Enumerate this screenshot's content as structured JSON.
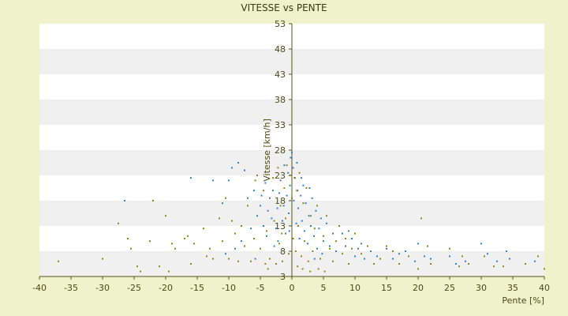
{
  "chart_data": {
    "type": "scatter",
    "title": "VITESSE vs PENTE",
    "xlabel": "Pente [%]",
    "ylabel": "Vitesse [km/h]",
    "xlim": [
      -40,
      40
    ],
    "ylim": [
      3,
      53
    ],
    "xticks": [
      "-40",
      "-35",
      "-30",
      "-25",
      "-20",
      "-15",
      "-10",
      "-5",
      "0",
      "5",
      "10",
      "15",
      "20",
      "25",
      "30",
      "35",
      "40"
    ],
    "yticks": [
      "3",
      "8",
      "13",
      "18",
      "23",
      "28",
      "33",
      "38",
      "43",
      "48",
      "53"
    ],
    "grid": "horizontal-bands",
    "colors": {
      "background": "#f0f2cc",
      "band_light": "#ffffff",
      "band_dark": "#f0f0f0",
      "axis": "#55551a",
      "series_blue": "#2f7fd6",
      "series_olive": "#8a8a10"
    },
    "series": [
      {
        "marker_color": "#2f7fd6",
        "points": [
          [
            -9.5,
            24.5
          ],
          [
            -8.5,
            25.5
          ],
          [
            -7.5,
            24.0
          ],
          [
            -10.0,
            22.0
          ],
          [
            -12.5,
            22.0
          ],
          [
            -16.0,
            22.5
          ],
          [
            -11.0,
            17.5
          ],
          [
            -26.5,
            18.0
          ],
          [
            -7.0,
            18.5
          ],
          [
            -6.0,
            20.0
          ],
          [
            -5.5,
            15.0
          ],
          [
            -5.0,
            17.0
          ],
          [
            -4.8,
            19.0
          ],
          [
            -4.5,
            13.0
          ],
          [
            -4.2,
            21.5
          ],
          [
            -4.0,
            11.0
          ],
          [
            -3.8,
            16.0
          ],
          [
            -3.5,
            18.5
          ],
          [
            -3.2,
            14.5
          ],
          [
            -3.0,
            20.0
          ],
          [
            -2.8,
            9.0
          ],
          [
            -2.5,
            12.5
          ],
          [
            -2.3,
            16.5
          ],
          [
            -2.0,
            19.5
          ],
          [
            -1.8,
            22.0
          ],
          [
            -1.5,
            14.0
          ],
          [
            -1.3,
            17.0
          ],
          [
            -1.0,
            11.5
          ],
          [
            -0.8,
            19.0
          ],
          [
            -0.6,
            23.5
          ],
          [
            -0.5,
            15.5
          ],
          [
            -0.3,
            21.0
          ],
          [
            -0.2,
            26.5
          ],
          [
            0.0,
            27.5
          ],
          [
            0.2,
            24.5
          ],
          [
            0.3,
            18.0
          ],
          [
            0.5,
            22.5
          ],
          [
            0.7,
            13.5
          ],
          [
            0.9,
            20.0
          ],
          [
            1.0,
            16.5
          ],
          [
            1.2,
            10.5
          ],
          [
            1.4,
            19.0
          ],
          [
            1.6,
            14.0
          ],
          [
            1.8,
            21.0
          ],
          [
            2.0,
            12.0
          ],
          [
            2.2,
            17.5
          ],
          [
            2.5,
            9.5
          ],
          [
            2.7,
            15.0
          ],
          [
            3.0,
            13.0
          ],
          [
            3.2,
            18.5
          ],
          [
            3.5,
            11.0
          ],
          [
            3.8,
            16.0
          ],
          [
            4.0,
            8.5
          ],
          [
            4.3,
            12.5
          ],
          [
            4.6,
            14.5
          ],
          [
            5.0,
            10.0
          ],
          [
            5.5,
            13.5
          ],
          [
            6.0,
            9.0
          ],
          [
            6.5,
            11.5
          ],
          [
            7.0,
            8.0
          ],
          [
            8.0,
            11.5
          ],
          [
            8.5,
            9.0
          ],
          [
            9.0,
            12.0
          ],
          [
            9.5,
            10.5
          ],
          [
            10.0,
            7.0
          ],
          [
            10.5,
            8.5
          ],
          [
            11.0,
            9.5
          ],
          [
            11.5,
            6.5
          ],
          [
            12.5,
            8.0
          ],
          [
            13.5,
            7.0
          ],
          [
            15.0,
            8.5
          ],
          [
            16.0,
            6.5
          ],
          [
            17.0,
            7.5
          ],
          [
            18.0,
            8.0
          ],
          [
            19.5,
            6.0
          ],
          [
            20.0,
            9.5
          ],
          [
            21.0,
            7.0
          ],
          [
            22.0,
            6.5
          ],
          [
            25.0,
            7.0
          ],
          [
            26.0,
            5.5
          ],
          [
            27.5,
            6.0
          ],
          [
            30.0,
            9.5
          ],
          [
            31.0,
            7.5
          ],
          [
            32.5,
            6.0
          ],
          [
            34.0,
            8.0
          ],
          [
            34.5,
            6.5
          ],
          [
            38.5,
            6.0
          ],
          [
            -10.5,
            7.5
          ],
          [
            -9.0,
            8.5
          ],
          [
            -8.0,
            10.0
          ],
          [
            -6.5,
            12.5
          ],
          [
            -5.8,
            6.5
          ],
          [
            -1.2,
            25.0
          ],
          [
            0.8,
            25.5
          ],
          [
            -0.4,
            12.0
          ],
          [
            1.5,
            22.5
          ],
          [
            2.8,
            20.5
          ],
          [
            -2.2,
            10.0
          ],
          [
            3.6,
            6.5
          ],
          [
            4.8,
            7.5
          ]
        ]
      },
      {
        "marker_color": "#8a8a10",
        "points": [
          [
            -37.0,
            6.0
          ],
          [
            -30.0,
            6.5
          ],
          [
            -27.5,
            13.5
          ],
          [
            -26.0,
            10.5
          ],
          [
            -25.5,
            8.5
          ],
          [
            -24.5,
            5.0
          ],
          [
            -24.0,
            4.0
          ],
          [
            -22.5,
            10.0
          ],
          [
            -22.0,
            18.0
          ],
          [
            -21.0,
            5.0
          ],
          [
            -20.0,
            15.0
          ],
          [
            -19.5,
            4.0
          ],
          [
            -19.0,
            9.5
          ],
          [
            -18.5,
            8.5
          ],
          [
            -17.0,
            10.5
          ],
          [
            -16.5,
            11.0
          ],
          [
            -15.5,
            9.5
          ],
          [
            -14.0,
            12.5
          ],
          [
            -13.0,
            8.5
          ],
          [
            -12.5,
            6.5
          ],
          [
            -11.5,
            14.5
          ],
          [
            -11.0,
            10.0
          ],
          [
            -10.5,
            18.5
          ],
          [
            -10.0,
            6.5
          ],
          [
            -9.5,
            14.0
          ],
          [
            -9.0,
            11.5
          ],
          [
            -8.5,
            6.0
          ],
          [
            -8.0,
            13.0
          ],
          [
            -7.5,
            9.0
          ],
          [
            -7.0,
            17.0
          ],
          [
            -6.5,
            6.0
          ],
          [
            -6.0,
            10.5
          ],
          [
            -5.5,
            23.0
          ],
          [
            -5.0,
            8.5
          ],
          [
            -4.5,
            20.0
          ],
          [
            -4.2,
            5.5
          ],
          [
            -4.0,
            12.0
          ],
          [
            -3.5,
            6.5
          ],
          [
            -3.0,
            22.5
          ],
          [
            -2.8,
            14.0
          ],
          [
            -2.5,
            5.5
          ],
          [
            -2.2,
            24.5
          ],
          [
            -2.0,
            9.5
          ],
          [
            -1.8,
            17.0
          ],
          [
            -1.5,
            6.0
          ],
          [
            -1.2,
            20.5
          ],
          [
            -1.0,
            14.5
          ],
          [
            -0.8,
            25.0
          ],
          [
            -0.5,
            7.5
          ],
          [
            -0.3,
            23.0
          ],
          [
            0.0,
            18.5
          ],
          [
            0.2,
            10.5
          ],
          [
            0.4,
            22.5
          ],
          [
            0.6,
            8.0
          ],
          [
            0.8,
            20.0
          ],
          [
            1.0,
            13.0
          ],
          [
            1.2,
            23.5
          ],
          [
            1.5,
            7.0
          ],
          [
            1.8,
            17.5
          ],
          [
            2.0,
            10.0
          ],
          [
            2.3,
            20.5
          ],
          [
            2.6,
            6.0
          ],
          [
            3.0,
            15.0
          ],
          [
            3.3,
            8.0
          ],
          [
            3.6,
            12.5
          ],
          [
            4.0,
            17.0
          ],
          [
            4.5,
            6.5
          ],
          [
            5.0,
            11.0
          ],
          [
            5.5,
            15.0
          ],
          [
            6.0,
            8.5
          ],
          [
            6.5,
            6.0
          ],
          [
            7.0,
            10.0
          ],
          [
            7.5,
            13.0
          ],
          [
            8.0,
            7.5
          ],
          [
            8.5,
            10.5
          ],
          [
            9.0,
            5.5
          ],
          [
            9.5,
            8.5
          ],
          [
            10.0,
            11.5
          ],
          [
            11.0,
            7.5
          ],
          [
            12.0,
            9.0
          ],
          [
            13.0,
            5.5
          ],
          [
            14.0,
            6.5
          ],
          [
            15.0,
            9.0
          ],
          [
            16.0,
            8.0
          ],
          [
            17.0,
            5.5
          ],
          [
            18.5,
            7.0
          ],
          [
            20.0,
            4.5
          ],
          [
            20.5,
            14.5
          ],
          [
            21.5,
            9.0
          ],
          [
            22.0,
            5.5
          ],
          [
            25.0,
            8.5
          ],
          [
            26.5,
            5.0
          ],
          [
            27.0,
            7.0
          ],
          [
            28.0,
            5.5
          ],
          [
            30.5,
            7.0
          ],
          [
            32.0,
            5.0
          ],
          [
            33.5,
            5.0
          ],
          [
            37.0,
            5.5
          ],
          [
            39.0,
            7.0
          ],
          [
            40.0,
            4.5
          ],
          [
            -16.0,
            5.5
          ],
          [
            -13.5,
            7.0
          ],
          [
            -5.8,
            22.0
          ],
          [
            -3.8,
            4.5
          ],
          [
            0.9,
            5.0
          ],
          [
            1.7,
            4.5
          ],
          [
            2.9,
            4.0
          ],
          [
            4.2,
            4.5
          ],
          [
            5.2,
            4.0
          ],
          [
            -1.6,
            11.5
          ]
        ]
      }
    ]
  }
}
